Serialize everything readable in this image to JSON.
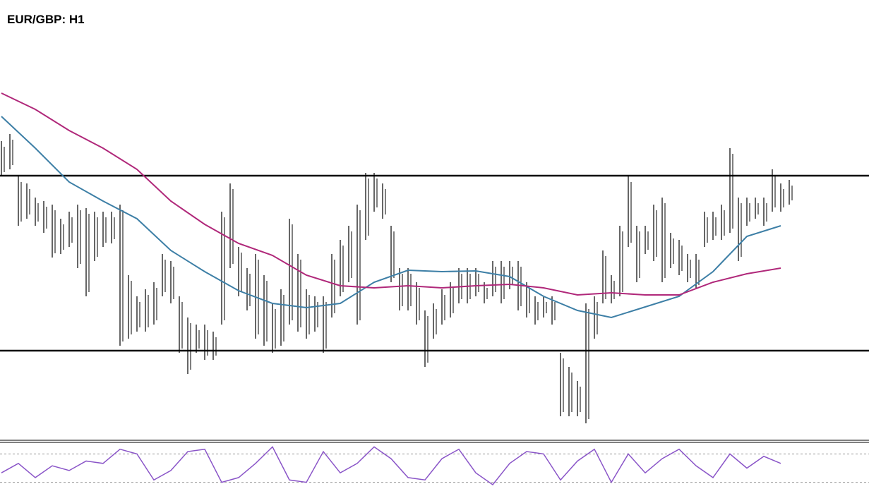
{
  "chart_data": {
    "type": "hl-bar",
    "title": "EUR/GBP: H1",
    "ylim": [
      0,
      580
    ],
    "levels": [
      371,
      123
    ],
    "bar_color": "#000000",
    "high": [
      420,
      430,
      370,
      360,
      340,
      335,
      330,
      310,
      320,
      330,
      325,
      320,
      320,
      320,
      330,
      230,
      200,
      210,
      220,
      260,
      250,
      200,
      170,
      160,
      160,
      150,
      320,
      360,
      270,
      240,
      260,
      230,
      190,
      210,
      310,
      260,
      210,
      200,
      200,
      260,
      280,
      300,
      330,
      375,
      375,
      360,
      300,
      240,
      240,
      220,
      180,
      190,
      210,
      220,
      240,
      240,
      240,
      220,
      250,
      250,
      250,
      250,
      220,
      200,
      200,
      200,
      120,
      100,
      80,
      190,
      200,
      265,
      230,
      300,
      370,
      300,
      300,
      330,
      340,
      290,
      280,
      260,
      260,
      320,
      320,
      330,
      410,
      340,
      340,
      340,
      340,
      380,
      360,
      365
    ],
    "low": [
      370,
      380,
      300,
      310,
      300,
      290,
      255,
      260,
      270,
      240,
      200,
      250,
      270,
      275,
      130,
      140,
      150,
      150,
      160,
      200,
      190,
      120,
      90,
      120,
      110,
      110,
      160,
      240,
      200,
      180,
      140,
      130,
      120,
      130,
      160,
      150,
      140,
      150,
      120,
      170,
      200,
      220,
      160,
      280,
      320,
      310,
      220,
      180,
      180,
      160,
      100,
      140,
      160,
      170,
      190,
      190,
      200,
      190,
      200,
      190,
      210,
      180,
      170,
      160,
      170,
      160,
      30,
      30,
      30,
      20,
      140,
      190,
      190,
      200,
      270,
      220,
      260,
      250,
      220,
      240,
      230,
      220,
      210,
      270,
      280,
      280,
      290,
      250,
      300,
      310,
      300,
      320,
      320,
      330
    ],
    "moving_averages": [
      {
        "color": "#3d7fa6",
        "x": [
          0,
          4,
          8,
          12,
          16,
          20,
          24,
          28,
          32,
          36,
          40,
          44,
          48,
          52,
          56,
          60,
          64,
          68,
          72,
          76,
          80,
          84,
          88,
          92
        ],
        "values": [
          455,
          410,
          362,
          335,
          310,
          265,
          235,
          208,
          190,
          184,
          190,
          220,
          237,
          235,
          236,
          228,
          200,
          180,
          170,
          185,
          200,
          235,
          285,
          300
        ]
      },
      {
        "color": "#b0287a",
        "x": [
          0,
          4,
          8,
          12,
          16,
          20,
          24,
          28,
          32,
          36,
          40,
          44,
          48,
          52,
          56,
          60,
          64,
          68,
          72,
          76,
          80,
          84,
          88,
          92
        ],
        "values": [
          488,
          465,
          435,
          410,
          380,
          335,
          302,
          275,
          258,
          230,
          215,
          212,
          215,
          212,
          215,
          217,
          212,
          202,
          205,
          202,
          202,
          220,
          232,
          240
        ]
      }
    ],
    "oscillator": {
      "ylim": [
        0,
        100
      ],
      "levels": [
        20,
        80
      ],
      "color": "#8a55c8",
      "x": [
        0,
        2,
        4,
        6,
        8,
        10,
        12,
        14,
        16,
        18,
        20,
        22,
        24,
        26,
        28,
        30,
        32,
        34,
        36,
        38,
        40,
        42,
        44,
        46,
        48,
        50,
        52,
        54,
        56,
        58,
        60,
        62,
        64,
        66,
        68,
        70,
        72,
        74,
        76,
        78,
        80,
        82,
        84,
        86,
        88,
        90,
        92
      ],
      "values": [
        40,
        60,
        30,
        55,
        45,
        65,
        60,
        90,
        80,
        25,
        45,
        85,
        90,
        20,
        30,
        60,
        95,
        25,
        20,
        85,
        40,
        60,
        95,
        70,
        30,
        25,
        70,
        90,
        40,
        15,
        60,
        85,
        80,
        25,
        65,
        90,
        20,
        80,
        40,
        70,
        90,
        55,
        30,
        80,
        50,
        75,
        60
      ]
    }
  }
}
